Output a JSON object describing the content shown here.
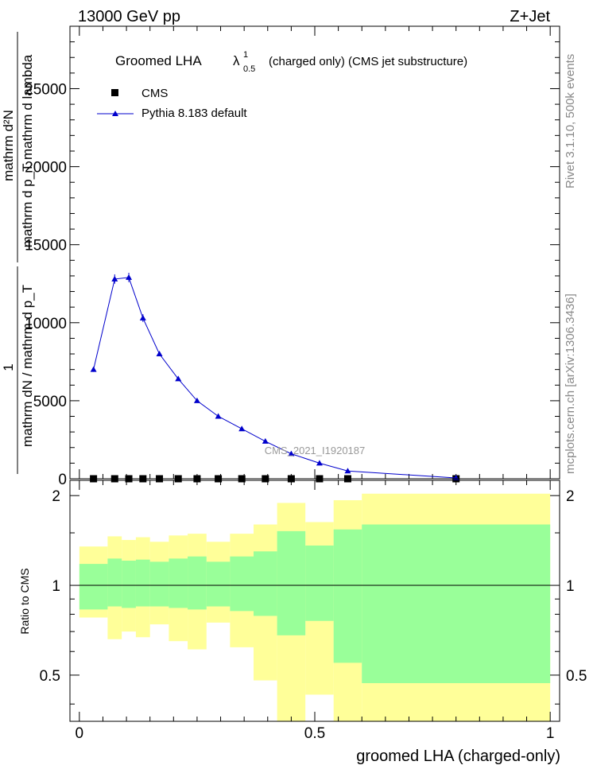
{
  "header": {
    "left": "13000 GeV pp",
    "right": "Z+Jet"
  },
  "side_labels": {
    "rivet": "Rivet 3.1.10,  500k events",
    "mcplots": "mcplots.cern.ch [arXiv:1306.3436]"
  },
  "chart_data": [
    {
      "type": "line",
      "panel": "main",
      "title_prefix": "Groomed LHA",
      "title_symbol": "λ",
      "title_sup": "1",
      "title_sub": "0.5",
      "title_suffix": "(charged only) (CMS jet substructure)",
      "watermark": "CMS_2021_I1920187",
      "ylabel_numerator": "mathrm d²N",
      "ylabel_denominator": "mathrm d p_T mathrm d lambda",
      "ylabel_prefactor": "1",
      "ylabel_mid": "mathrm dN / mathrm d p_T",
      "ylim": [
        0,
        29000
      ],
      "xlim": [
        -0.02,
        1.02
      ],
      "yticks": [
        0,
        5000,
        10000,
        15000,
        20000,
        25000
      ],
      "ytick_labels": [
        "0",
        "5000",
        "10000",
        "15000",
        "20000",
        "25000"
      ],
      "legend": [
        {
          "name": "CMS",
          "marker": "square",
          "color": "#000000"
        },
        {
          "name": "Pythia 8.183 default",
          "marker": "triangle",
          "color": "#0000cc"
        }
      ],
      "series": [
        {
          "name": "CMS",
          "x": [
            0.03,
            0.075,
            0.105,
            0.135,
            0.17,
            0.21,
            0.25,
            0.295,
            0.345,
            0.395,
            0.45,
            0.51,
            0.57,
            0.8
          ],
          "values": [
            0,
            0,
            0,
            0,
            0,
            0,
            0,
            0,
            0,
            0,
            0,
            0,
            0,
            0
          ]
        },
        {
          "name": "Pythia 8.183 default",
          "x": [
            0.03,
            0.075,
            0.105,
            0.135,
            0.17,
            0.21,
            0.25,
            0.295,
            0.345,
            0.395,
            0.45,
            0.51,
            0.57,
            0.8
          ],
          "values": [
            7000,
            12800,
            12900,
            10300,
            8000,
            6400,
            5000,
            4000,
            3200,
            2400,
            1600,
            1000,
            500,
            50
          ],
          "errors": [
            150,
            300,
            300,
            250,
            150,
            120,
            100,
            80,
            70,
            60,
            50,
            40,
            30,
            10
          ]
        }
      ]
    },
    {
      "type": "area",
      "panel": "ratio",
      "ylabel": "Ratio to CMS",
      "ylim": [
        0.35,
        2.25
      ],
      "xlim": [
        -0.02,
        1.02
      ],
      "yticks": [
        0.5,
        1,
        2
      ],
      "ytick_labels": [
        "0.5",
        "1",
        "2"
      ],
      "xticks": [
        0,
        0.5,
        1
      ],
      "xtick_labels": [
        "0",
        "0.5",
        "1"
      ],
      "xlabel": "groomed LHA (charged-only)",
      "bin_edges": [
        0,
        0.06,
        0.09,
        0.12,
        0.15,
        0.19,
        0.23,
        0.27,
        0.32,
        0.37,
        0.42,
        0.48,
        0.54,
        0.6,
        1.0
      ],
      "stat_band": {
        "lo": [
          0.83,
          0.85,
          0.84,
          0.85,
          0.85,
          0.84,
          0.83,
          0.85,
          0.82,
          0.79,
          0.68,
          0.76,
          0.55,
          0.47
        ],
        "hi": [
          1.18,
          1.23,
          1.21,
          1.22,
          1.2,
          1.23,
          1.25,
          1.2,
          1.25,
          1.3,
          1.52,
          1.36,
          1.54,
          1.6
        ]
      },
      "syst_band": {
        "lo": [
          0.78,
          0.66,
          0.7,
          0.67,
          0.74,
          0.65,
          0.61,
          0.75,
          0.62,
          0.48,
          0.35,
          0.43,
          0.35,
          0.35
        ],
        "hi": [
          1.35,
          1.46,
          1.42,
          1.45,
          1.4,
          1.47,
          1.49,
          1.4,
          1.49,
          1.6,
          1.89,
          1.63,
          1.93,
          2.03
        ]
      },
      "reference_line": 1,
      "colors": {
        "stat": "#99ff99",
        "syst": "#ffff99"
      }
    }
  ]
}
